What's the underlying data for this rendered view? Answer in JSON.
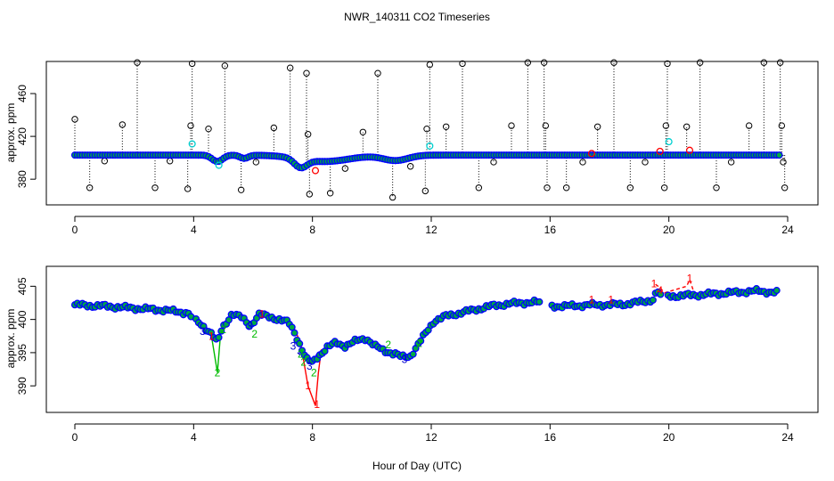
{
  "chart_data": {
    "type": "scatter",
    "title": "NWR_140311  CO2 Timeseries",
    "xlabel": "Hour of Day (UTC)",
    "xlim": [
      -1,
      24.5
    ],
    "xticks": [
      0,
      4,
      8,
      12,
      16,
      20,
      24
    ],
    "panels": [
      {
        "id": "top",
        "ylabel": "approx. ppm",
        "ylim": [
          356,
          490
        ],
        "yticks": [
          380,
          420,
          460
        ],
        "baseline_ppm": 402.5,
        "dips": [
          {
            "center": 4.8,
            "width": 0.25,
            "depth": 6
          },
          {
            "center": 5.7,
            "width": 0.2,
            "depth": 3
          },
          {
            "center": 7.6,
            "width": 0.3,
            "depth": 8
          },
          {
            "center": 8.4,
            "width": 1.2,
            "depth": 6
          },
          {
            "center": 10.8,
            "width": 0.6,
            "depth": 5
          }
        ],
        "spikes": [
          {
            "x": 0.0,
            "y": 436
          },
          {
            "x": 0.5,
            "y": 372
          },
          {
            "x": 1.0,
            "y": 397
          },
          {
            "x": 1.6,
            "y": 431
          },
          {
            "x": 2.1,
            "y": 489
          },
          {
            "x": 2.7,
            "y": 372
          },
          {
            "x": 3.2,
            "y": 397
          },
          {
            "x": 3.8,
            "y": 371
          },
          {
            "x": 3.9,
            "y": 430
          },
          {
            "x": 3.95,
            "y": 488
          },
          {
            "x": 4.5,
            "y": 427
          },
          {
            "x": 5.05,
            "y": 486
          },
          {
            "x": 5.6,
            "y": 370
          },
          {
            "x": 6.1,
            "y": 396
          },
          {
            "x": 6.7,
            "y": 428
          },
          {
            "x": 7.25,
            "y": 484
          },
          {
            "x": 7.8,
            "y": 479
          },
          {
            "x": 7.85,
            "y": 422
          },
          {
            "x": 7.9,
            "y": 366
          },
          {
            "x": 8.6,
            "y": 367
          },
          {
            "x": 9.1,
            "y": 390
          },
          {
            "x": 9.7,
            "y": 424
          },
          {
            "x": 10.2,
            "y": 479
          },
          {
            "x": 10.7,
            "y": 363
          },
          {
            "x": 11.3,
            "y": 392
          },
          {
            "x": 11.8,
            "y": 369
          },
          {
            "x": 11.85,
            "y": 427
          },
          {
            "x": 11.95,
            "y": 487
          },
          {
            "x": 12.5,
            "y": 429
          },
          {
            "x": 13.05,
            "y": 488
          },
          {
            "x": 13.6,
            "y": 372
          },
          {
            "x": 14.1,
            "y": 396
          },
          {
            "x": 14.7,
            "y": 430
          },
          {
            "x": 15.25,
            "y": 489
          },
          {
            "x": 15.8,
            "y": 489
          },
          {
            "x": 15.85,
            "y": 430
          },
          {
            "x": 15.9,
            "y": 372
          },
          {
            "x": 16.55,
            "y": 372
          },
          {
            "x": 17.1,
            "y": 396
          },
          {
            "x": 17.6,
            "y": 429
          },
          {
            "x": 18.15,
            "y": 489
          },
          {
            "x": 18.7,
            "y": 372
          },
          {
            "x": 19.2,
            "y": 396
          },
          {
            "x": 19.85,
            "y": 372
          },
          {
            "x": 19.9,
            "y": 430
          },
          {
            "x": 19.95,
            "y": 488
          },
          {
            "x": 20.6,
            "y": 429
          },
          {
            "x": 21.05,
            "y": 489
          },
          {
            "x": 21.6,
            "y": 372
          },
          {
            "x": 22.1,
            "y": 396
          },
          {
            "x": 22.7,
            "y": 430
          },
          {
            "x": 23.2,
            "y": 489
          },
          {
            "x": 23.75,
            "y": 489
          },
          {
            "x": 23.8,
            "y": 430
          },
          {
            "x": 23.85,
            "y": 396
          },
          {
            "x": 23.9,
            "y": 372
          }
        ],
        "extra_markers": [
          {
            "x": 3.95,
            "y": 413,
            "color": "#00d0d0"
          },
          {
            "x": 4.85,
            "y": 393,
            "color": "#00d0d0"
          },
          {
            "x": 8.1,
            "y": 388,
            "color": "#ff0000"
          },
          {
            "x": 11.95,
            "y": 411,
            "color": "#00d0d0"
          },
          {
            "x": 17.4,
            "y": 404,
            "color": "#ff0000"
          },
          {
            "x": 19.7,
            "y": 406,
            "color": "#ff0000"
          },
          {
            "x": 20.0,
            "y": 415,
            "color": "#00d0d0"
          },
          {
            "x": 20.7,
            "y": 407,
            "color": "#ff0000"
          }
        ]
      },
      {
        "id": "bottom",
        "ylabel": "approx. ppm",
        "ylim": [
          386,
          408
        ],
        "yticks": [
          390,
          395,
          400,
          405
        ],
        "gaps": [
          [
            3.95,
            4.05
          ],
          [
            15.65,
            16.0
          ],
          [
            19.75,
            19.95
          ]
        ],
        "curve": [
          [
            0.0,
            402.2
          ],
          [
            1.0,
            402.0
          ],
          [
            2.0,
            401.7
          ],
          [
            3.0,
            401.4
          ],
          [
            3.8,
            401.0
          ],
          [
            4.0,
            400.0
          ],
          [
            4.3,
            399.0
          ],
          [
            4.6,
            398.0
          ],
          [
            4.8,
            396.5
          ],
          [
            4.95,
            398.5
          ],
          [
            5.1,
            399.5
          ],
          [
            5.3,
            401.0
          ],
          [
            5.6,
            400.3
          ],
          [
            5.9,
            399.0
          ],
          [
            6.2,
            400.8
          ],
          [
            6.5,
            400.4
          ],
          [
            6.9,
            400.0
          ],
          [
            7.2,
            399.5
          ],
          [
            7.4,
            398.0
          ],
          [
            7.6,
            396.0
          ],
          [
            7.8,
            394.0
          ],
          [
            8.0,
            393.5
          ],
          [
            8.2,
            394.5
          ],
          [
            8.5,
            395.8
          ],
          [
            8.8,
            396.5
          ],
          [
            9.1,
            396.0
          ],
          [
            9.5,
            396.8
          ],
          [
            9.8,
            397.2
          ],
          [
            10.1,
            396.0
          ],
          [
            10.4,
            395.3
          ],
          [
            10.8,
            394.8
          ],
          [
            11.0,
            394.3
          ],
          [
            11.3,
            394.5
          ],
          [
            11.6,
            396.5
          ],
          [
            11.9,
            398.5
          ],
          [
            12.1,
            399.8
          ],
          [
            12.5,
            400.5
          ],
          [
            13.0,
            401.0
          ],
          [
            13.5,
            401.5
          ],
          [
            14.0,
            402.0
          ],
          [
            14.5,
            402.3
          ],
          [
            15.0,
            402.5
          ],
          [
            15.6,
            402.6
          ],
          [
            16.0,
            402.0
          ],
          [
            16.5,
            402.0
          ],
          [
            17.0,
            402.1
          ],
          [
            17.5,
            402.2
          ],
          [
            18.0,
            402.2
          ],
          [
            18.5,
            402.3
          ],
          [
            19.0,
            402.6
          ],
          [
            19.5,
            403.0
          ],
          [
            19.6,
            404.5
          ],
          [
            19.7,
            403.5
          ],
          [
            20.0,
            403.5
          ],
          [
            21.0,
            403.7
          ],
          [
            22.0,
            404.0
          ],
          [
            23.0,
            404.3
          ],
          [
            23.7,
            404.0
          ]
        ],
        "line_red": [
          [
            7.3,
            399.5
          ],
          [
            7.6,
            396.5
          ],
          [
            7.85,
            390.0
          ],
          [
            8.0,
            388.2
          ],
          [
            8.1,
            387.0
          ],
          [
            8.2,
            392.0
          ],
          [
            8.3,
            395.5
          ]
        ],
        "line_green": [
          [
            4.6,
            397.5
          ],
          [
            4.8,
            392.0
          ],
          [
            4.9,
            397.5
          ]
        ],
        "line_blue_dashed": [
          [
            7.5,
            395.0
          ],
          [
            7.9,
            393.5
          ],
          [
            8.2,
            395.0
          ]
        ],
        "line_red_dashed": [
          [
            19.55,
            405.3
          ],
          [
            19.7,
            404.8
          ],
          [
            19.85,
            404.0
          ],
          [
            20.6,
            405.0
          ],
          [
            20.7,
            406.0
          ],
          [
            20.85,
            404.0
          ]
        ],
        "flag_labels": [
          {
            "x": 4.8,
            "y": 392.0,
            "label": "2",
            "color": "#00bb00"
          },
          {
            "x": 4.3,
            "y": 398.2,
            "label": "3",
            "color": "#0000cc"
          },
          {
            "x": 4.6,
            "y": 397.5,
            "label": "1",
            "color": "#ff0000"
          },
          {
            "x": 5.0,
            "y": 398.5,
            "label": "2",
            "color": "#00bb00"
          },
          {
            "x": 6.05,
            "y": 397.8,
            "label": "2",
            "color": "#00bb00"
          },
          {
            "x": 6.3,
            "y": 400.8,
            "label": "1",
            "color": "#ff0000"
          },
          {
            "x": 5.9,
            "y": 399.0,
            "label": "3",
            "color": "#0000cc"
          },
          {
            "x": 7.35,
            "y": 396.0,
            "label": "3",
            "color": "#0000cc"
          },
          {
            "x": 7.6,
            "y": 394.8,
            "label": "2",
            "color": "#00bb00"
          },
          {
            "x": 7.7,
            "y": 393.6,
            "label": "2",
            "color": "#00bb00"
          },
          {
            "x": 7.85,
            "y": 390.0,
            "label": "1",
            "color": "#ff0000"
          },
          {
            "x": 7.9,
            "y": 393.0,
            "label": "3",
            "color": "#0000cc"
          },
          {
            "x": 8.05,
            "y": 392.0,
            "label": "2",
            "color": "#00bb00"
          },
          {
            "x": 8.15,
            "y": 387.2,
            "label": "1",
            "color": "#ff0000"
          },
          {
            "x": 10.55,
            "y": 396.2,
            "label": "2",
            "color": "#00bb00"
          },
          {
            "x": 11.6,
            "y": 396.4,
            "label": "2",
            "color": "#00bb00"
          },
          {
            "x": 11.1,
            "y": 394.0,
            "label": "3",
            "color": "#0000cc"
          },
          {
            "x": 17.4,
            "y": 403.0,
            "label": "1",
            "color": "#ff0000"
          },
          {
            "x": 18.05,
            "y": 403.0,
            "label": "1",
            "color": "#ff0000"
          },
          {
            "x": 19.5,
            "y": 405.4,
            "label": "1",
            "color": "#ff0000"
          },
          {
            "x": 19.7,
            "y": 404.4,
            "label": "4",
            "color": "#ff0000"
          },
          {
            "x": 20.7,
            "y": 406.2,
            "label": "1",
            "color": "#ff0000"
          }
        ]
      }
    ]
  },
  "colors": {
    "point_edge": "#0000ff",
    "point_fill_green": "#00aa44",
    "spike": "#000000",
    "axis": "#000000"
  }
}
